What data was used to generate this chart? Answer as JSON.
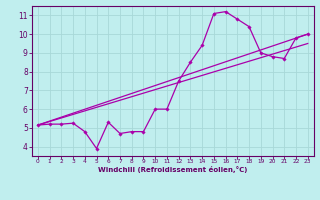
{
  "background_color": "#c0eeee",
  "grid_color": "#a8d8d8",
  "line_color": "#aa00aa",
  "marker_color": "#aa00aa",
  "xlabel": "Windchill (Refroidissement éolien,°C)",
  "xlabel_color": "#660066",
  "tick_color": "#660066",
  "axis_color": "#660066",
  "xlim": [
    -0.5,
    23.5
  ],
  "ylim": [
    3.5,
    11.5
  ],
  "yticks": [
    4,
    5,
    6,
    7,
    8,
    9,
    10,
    11
  ],
  "xticks": [
    0,
    1,
    2,
    3,
    4,
    5,
    6,
    7,
    8,
    9,
    10,
    11,
    12,
    13,
    14,
    15,
    16,
    17,
    18,
    19,
    20,
    21,
    22,
    23
  ],
  "line1_x": [
    0,
    1,
    2,
    3,
    4,
    5,
    6,
    7,
    8,
    9,
    10,
    11,
    12,
    13,
    14,
    15,
    16,
    17,
    18,
    19,
    20,
    21,
    22,
    23
  ],
  "line1_y": [
    5.15,
    5.2,
    5.2,
    5.25,
    4.8,
    3.9,
    5.3,
    4.7,
    4.8,
    4.8,
    6.0,
    6.0,
    7.5,
    8.5,
    9.4,
    11.1,
    11.2,
    10.8,
    10.4,
    9.0,
    8.8,
    8.7,
    9.8,
    10.0
  ],
  "line2_x": [
    0,
    23
  ],
  "line2_y": [
    5.15,
    10.0
  ],
  "line3_x": [
    0,
    23
  ],
  "line3_y": [
    5.15,
    9.5
  ]
}
